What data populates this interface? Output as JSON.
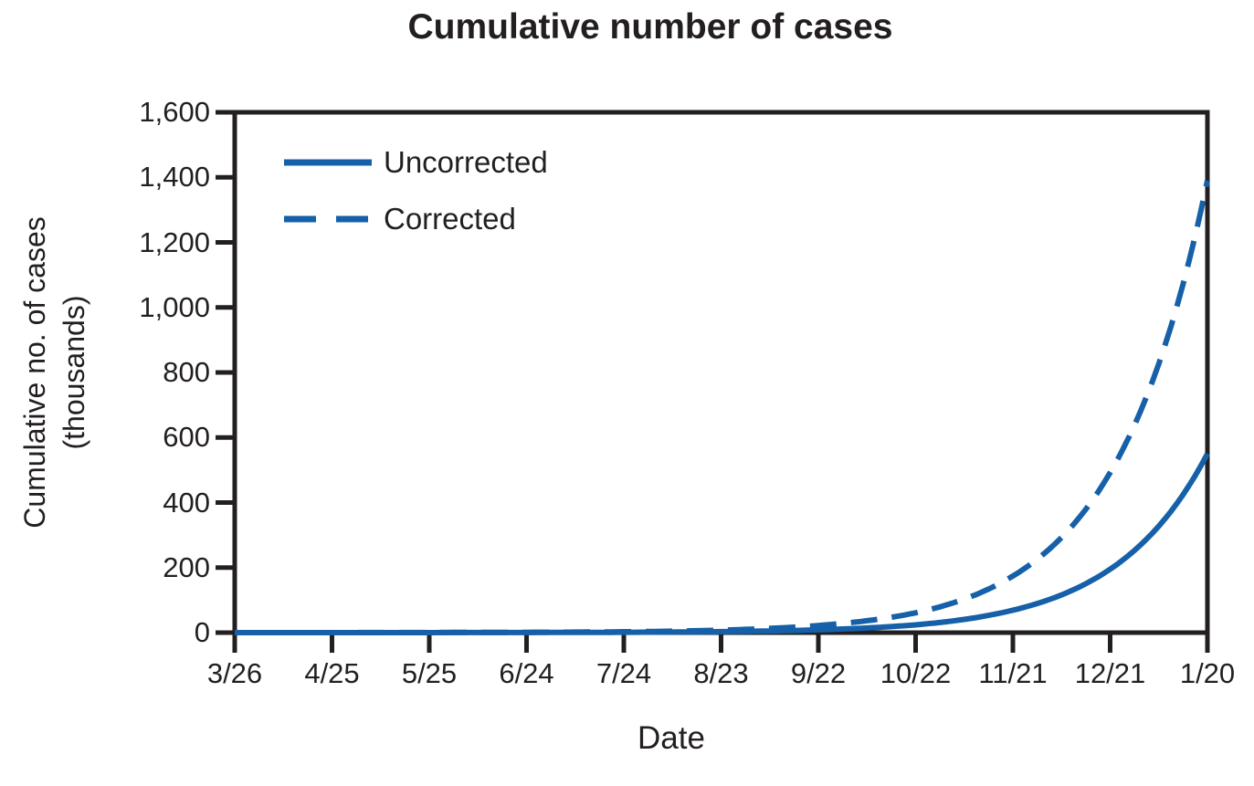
{
  "title": "Cumulative number of cases",
  "x_axis": {
    "label": "Date"
  },
  "y_axis": {
    "label_line1": "Cumulative no. of cases",
    "label_line2": "(thousands)",
    "tick_labels": [
      "0",
      "200",
      "400",
      "600",
      "800",
      "1,000",
      "1,200",
      "1,400",
      "1,600"
    ]
  },
  "legend": {
    "items": [
      {
        "label": "Uncorrected",
        "line_style": "solid"
      },
      {
        "label": "Corrected",
        "line_style": "dashed"
      }
    ]
  },
  "colors": {
    "line": "#1560a8",
    "ink": "#231f20",
    "background": "#ffffff"
  },
  "chart_data": {
    "type": "line",
    "title": "Cumulative number of cases",
    "xlabel": "Date",
    "ylabel": "Cumulative no. of cases (thousands)",
    "categories": [
      "3/26",
      "4/25",
      "5/25",
      "6/24",
      "7/24",
      "8/23",
      "9/22",
      "10/22",
      "11/21",
      "12/21",
      "1/20"
    ],
    "series": [
      {
        "name": "Uncorrected",
        "line_style": "solid",
        "values": [
          0.02,
          0.05,
          0.13,
          0.38,
          1.1,
          3.0,
          8.6,
          24,
          69,
          195,
          550
        ]
      },
      {
        "name": "Corrected",
        "line_style": "dashed",
        "values": [
          0.04,
          0.12,
          0.34,
          0.96,
          2.7,
          7.7,
          22,
          61,
          174,
          492,
          1390
        ]
      }
    ],
    "ylim": [
      0,
      1600
    ],
    "ytick_step": 200,
    "interpolation": "exponential",
    "grid": false,
    "legend_position": "top-left"
  }
}
